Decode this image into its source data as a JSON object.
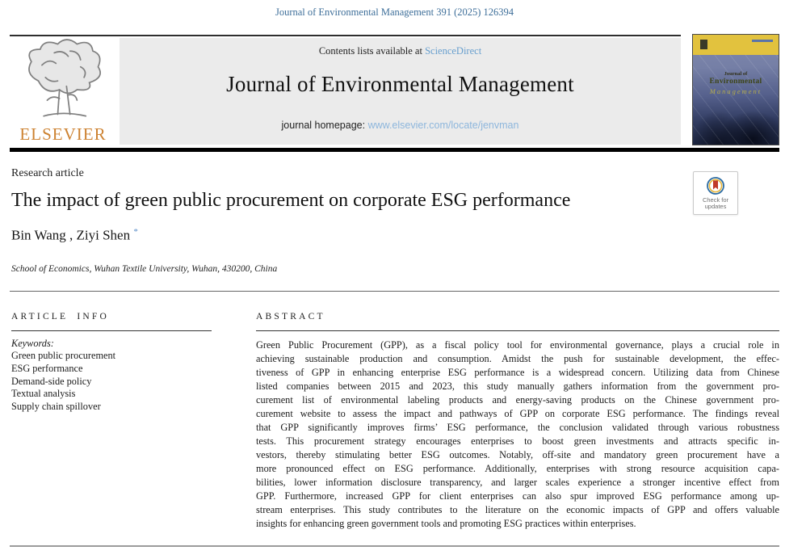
{
  "running_head": {
    "citation": "Journal of Environmental Management 391 (2025) 126394"
  },
  "masthead": {
    "contents_prefix": "Contents lists available at ",
    "sciencedirect_link": "ScienceDirect",
    "journal_title": "Journal of Environmental Management",
    "homepage_prefix": "journal homepage: ",
    "homepage_url": "www.elsevier.com/locate/jenvman",
    "publisher_wordmark": "ELSEVIER",
    "cover": {
      "line1": "Journal of",
      "line2": "Environmental",
      "line3": "Management"
    }
  },
  "article": {
    "type_label": "Research article",
    "title": "The impact of green public procurement on corporate ESG performance",
    "authors": [
      {
        "name": "Bin Wang",
        "marker": ""
      },
      {
        "name": "Ziyi Shen",
        "marker": "*"
      }
    ],
    "author_separator": " , ",
    "affiliation": "School of Economics, Wuhan Textile University, Wuhan, 430200, China",
    "check_badge": {
      "line1": "Check for",
      "line2": "updates"
    }
  },
  "article_info": {
    "heading": "ARTICLE INFO",
    "keywords_label": "Keywords:",
    "keywords": [
      "Green public procurement",
      "ESG performance",
      "Demand-side policy",
      "Textual analysis",
      "Supply chain spillover"
    ]
  },
  "abstract": {
    "heading": "ABSTRACT",
    "lines": [
      "Green Public Procurement (GPP), as a fiscal policy tool for environmental governance, plays a crucial role in",
      "achieving sustainable production and consumption. Amidst the push for sustainable development, the effec-",
      "tiveness of GPP in enhancing enterprise ESG performance is a widespread concern. Utilizing data from Chinese",
      "listed companies between 2015 and 2023, this study manually gathers information from the government pro-",
      "curement list of environmental labeling products and energy-saving products on the Chinese government pro-",
      "curement website to assess the impact and pathways of GPP on corporate ESG performance. The findings reveal",
      "that GPP significantly improves firms’ ESG performance, the conclusion validated through various robustness",
      "tests. This procurement strategy encourages enterprises to boost green investments and attracts specific in-",
      "vestors, thereby stimulating better ESG outcomes. Notably, off-site and mandatory green procurement have a",
      "more pronounced effect on ESG performance. Additionally, enterprises with strong resource acquisition capa-",
      "bilities, lower information disclosure transparency, and larger scales experience a stronger incentive effect from",
      "GPP. Furthermore, increased GPP for client enterprises can also spur improved ESG performance among up-",
      "stream enterprises. This study contributes to the literature on the economic impacts of GPP and offers valuable",
      "insights for enhancing green government tools and promoting ESG practices within enterprises."
    ]
  },
  "colors": {
    "citation_blue": "#3d6e99",
    "sciencedirect_link": "#689fce",
    "homepage_link": "#8db6dc",
    "elsevier_orange": "#cd8231",
    "masthead_gray": "#ebebeb",
    "cover_yellow": "#e2c23e",
    "cover_navy": "#1c2540",
    "badge_ring_blue": "#2d6ca2",
    "badge_ring_yellow": "#e8b63c",
    "badge_bookmark_red": "#c03a2b",
    "corresponding_marker_blue": "#5b8fc9"
  }
}
